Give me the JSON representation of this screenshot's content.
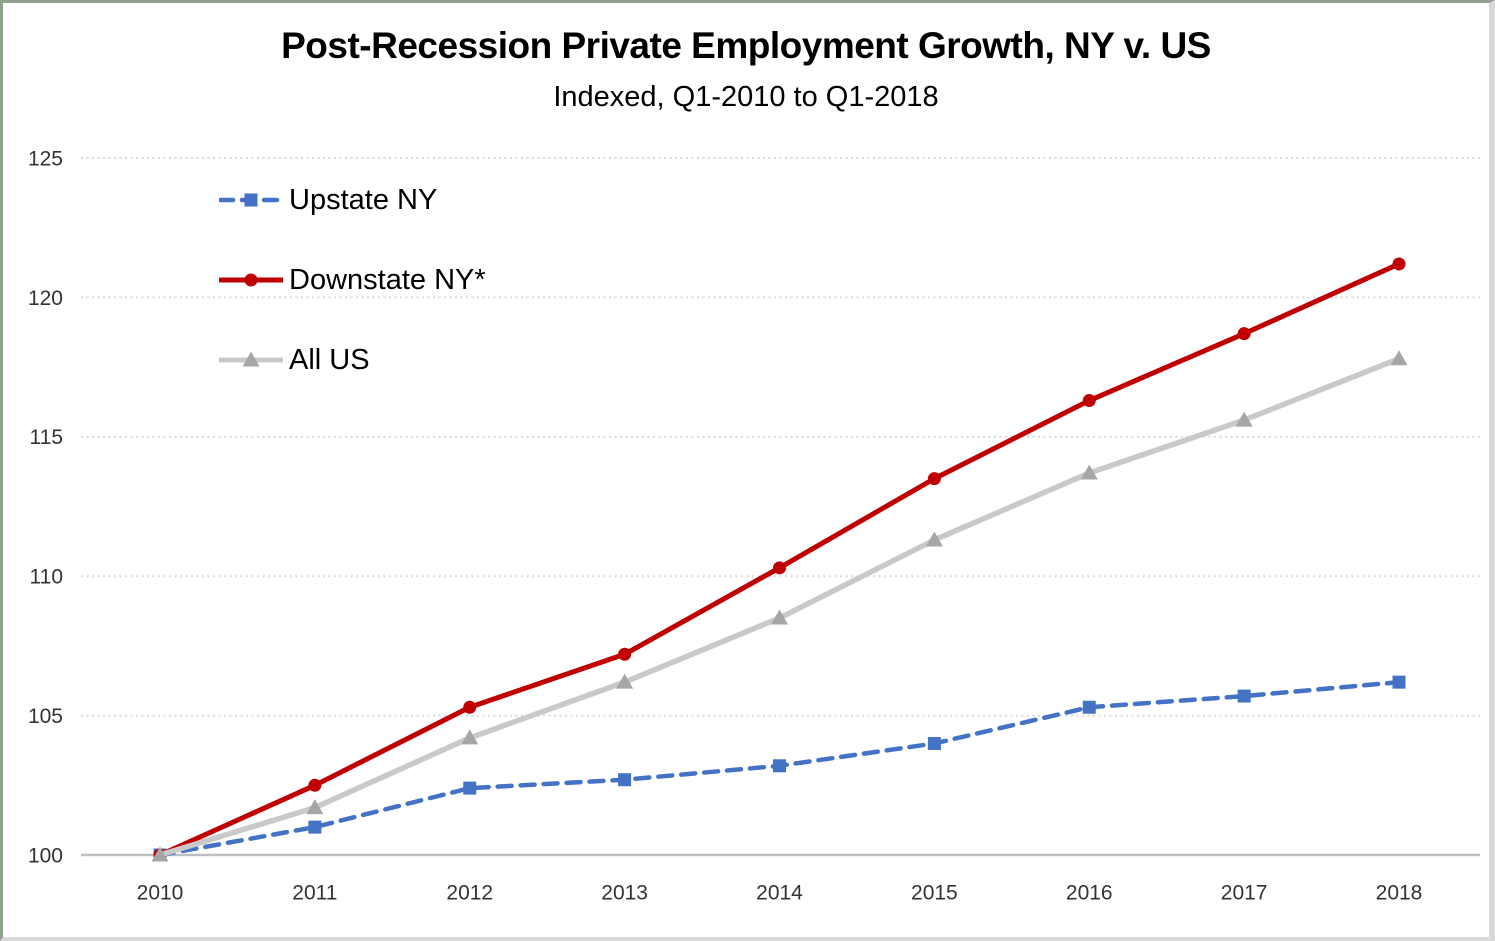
{
  "window": {
    "background": "#ffffff",
    "frame_color_top_left": "#8fa08d",
    "frame_color_bottom_right": "#d9d9d9"
  },
  "chart_data": {
    "type": "line",
    "title": "Post-Recession Private Employment Growth, NY v. US",
    "subtitle": "Indexed, Q1-2010 to Q1-2018",
    "x": [
      2010,
      2011,
      2012,
      2013,
      2014,
      2015,
      2016,
      2017,
      2018
    ],
    "series": [
      {
        "name": "Upstate NY",
        "color": "#4472C4",
        "line_style": "dashed",
        "marker": "square",
        "values": [
          100,
          101.0,
          102.4,
          102.7,
          103.2,
          104.0,
          105.3,
          105.7,
          106.2
        ]
      },
      {
        "name": "Downstate NY*",
        "color": "#C00000",
        "line_style": "solid",
        "marker": "circle",
        "values": [
          100,
          102.5,
          105.3,
          107.2,
          110.3,
          113.5,
          116.3,
          118.7,
          121.2
        ]
      },
      {
        "name": "All US",
        "color": "#C9C9C9",
        "marker_color": "#A6A6A6",
        "line_style": "solid",
        "marker": "triangle",
        "values": [
          100,
          101.7,
          104.2,
          106.2,
          108.5,
          111.3,
          113.7,
          115.6,
          117.8
        ]
      }
    ],
    "ylim": [
      100,
      125
    ],
    "yticks": [
      100,
      105,
      110,
      115,
      120,
      125
    ],
    "grid": "horizontal-dotted",
    "gridline_color": "#d9d9d9",
    "axis_line_color": "#bfbfbf",
    "legend_position": "top-left-vertical"
  }
}
